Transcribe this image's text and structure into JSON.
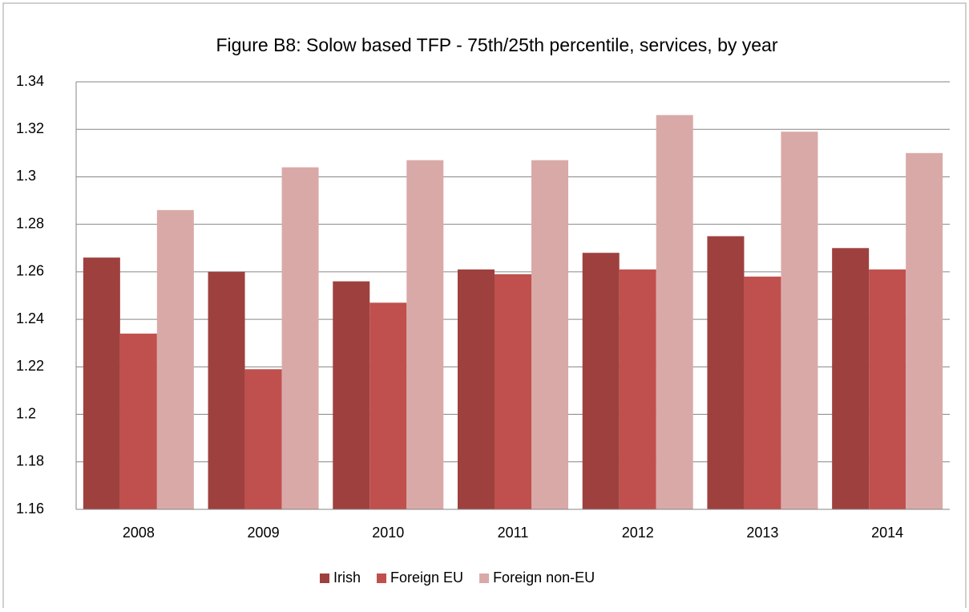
{
  "chart_data": {
    "type": "bar",
    "title": "Figure B8: Solow based TFP - 75th/25th percentile, services, by year",
    "categories": [
      "2008",
      "2009",
      "2010",
      "2011",
      "2012",
      "2013",
      "2014"
    ],
    "series": [
      {
        "name": "Irish",
        "color": "#9e413e",
        "values": [
          1.266,
          1.26,
          1.256,
          1.261,
          1.268,
          1.275,
          1.27
        ]
      },
      {
        "name": "Foreign EU",
        "color": "#c0504d",
        "values": [
          1.234,
          1.219,
          1.247,
          1.259,
          1.261,
          1.258,
          1.261
        ]
      },
      {
        "name": "Foreign non-EU",
        "color": "#d9a9a8",
        "values": [
          1.286,
          1.304,
          1.307,
          1.307,
          1.326,
          1.319,
          1.31
        ]
      }
    ],
    "ylim": [
      1.16,
      1.34
    ],
    "yticks": [
      1.16,
      1.18,
      1.2,
      1.22,
      1.24,
      1.26,
      1.28,
      1.3,
      1.32,
      1.34
    ],
    "grid": true,
    "legend": "bottom"
  }
}
